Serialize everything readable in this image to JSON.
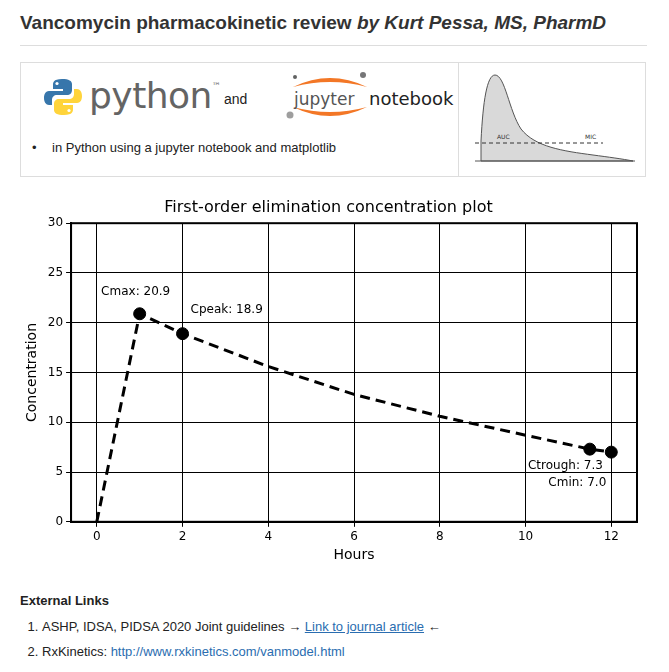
{
  "header": {
    "title": "Vancomycin pharmacokinetic review",
    "byline": "by Kurt Pessa, MS, PharmD"
  },
  "banner": {
    "python": "python",
    "trademark": "™",
    "and": "and",
    "jupyter": "jupyter",
    "notebook": "notebook",
    "bullet": "in Python using a jupyter notebook and matplotlib",
    "thumbnail": {
      "labels": [
        "AUC",
        "MIC"
      ]
    }
  },
  "chart_data": {
    "type": "line",
    "title": "First-order elimination concentration plot",
    "x_label": "Hours",
    "y_label": "Concentration",
    "xlim": [
      -0.6,
      12.6
    ],
    "xticks": [
      0,
      2,
      4,
      6,
      8,
      10,
      12
    ],
    "ylim": [
      0,
      30
    ],
    "yticks": [
      0,
      5,
      10,
      15,
      20,
      25,
      30
    ],
    "grid": true,
    "series": [
      {
        "type": "line",
        "line_style": "dashed",
        "marker": "none",
        "color": "#000000",
        "x": [
          0,
          1,
          2,
          4,
          6,
          8,
          10,
          11.5,
          12
        ],
        "values": [
          0,
          20.9,
          18.9,
          15.6,
          12.8,
          10.6,
          8.7,
          7.3,
          7.0
        ]
      },
      {
        "type": "scatter",
        "marker": "circle",
        "color": "#000000",
        "data_labels": true,
        "x": [
          1,
          2,
          11.5,
          12
        ],
        "values": [
          20.9,
          18.9,
          7.3,
          7.0
        ],
        "value_labels": [
          "Cmax: 20.9",
          "Cpeak: 18.9",
          "Ctrough: 7.3",
          "Cmin: 7.0"
        ]
      }
    ]
  },
  "links": {
    "heading": "External Links",
    "items": [
      {
        "text": "ASHP, IDSA, PIDSA 2020 Joint guidelines → ",
        "link": "Link to journal article",
        "after": " ←"
      },
      {
        "text": "RxKinetics: ",
        "link": "http://www.rxkinetics.com/vanmodel.html"
      }
    ]
  }
}
